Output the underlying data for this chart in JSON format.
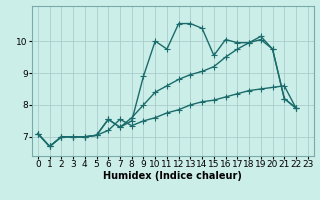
{
  "xlabel": "Humidex (Indice chaleur)",
  "bg_color": "#cceee8",
  "line_color": "#1a6b6b",
  "grid_color": "#aacccc",
  "xlim": [
    -0.5,
    23.5
  ],
  "ylim": [
    6.4,
    11.1
  ],
  "yticks": [
    7,
    8,
    9,
    10
  ],
  "xticks": [
    0,
    1,
    2,
    3,
    4,
    5,
    6,
    7,
    8,
    9,
    10,
    11,
    12,
    13,
    14,
    15,
    16,
    17,
    18,
    19,
    20,
    21,
    22,
    23
  ],
  "line1_x": [
    0,
    1,
    2,
    3,
    4,
    5,
    6,
    7,
    8,
    9,
    10,
    11,
    12,
    13,
    14,
    15,
    16,
    17,
    18,
    19,
    20,
    21,
    22
  ],
  "line1_y": [
    7.1,
    6.7,
    7.0,
    7.0,
    7.0,
    7.05,
    7.55,
    7.3,
    7.5,
    8.9,
    10.0,
    9.75,
    10.55,
    10.55,
    10.4,
    9.55,
    10.05,
    9.95,
    9.95,
    10.15,
    9.75,
    8.2,
    7.9
  ],
  "line2_x": [
    0,
    1,
    2,
    3,
    4,
    5,
    6,
    7,
    8,
    9,
    10,
    11,
    12,
    13,
    14,
    15,
    16,
    17,
    18,
    19,
    20,
    21,
    22
  ],
  "line2_y": [
    7.1,
    6.7,
    7.0,
    7.0,
    7.0,
    7.05,
    7.2,
    7.55,
    7.35,
    7.5,
    7.6,
    7.75,
    7.85,
    8.0,
    8.1,
    8.15,
    8.25,
    8.35,
    8.45,
    8.5,
    8.55,
    8.6,
    7.9
  ],
  "line3_x": [
    0,
    1,
    2,
    3,
    4,
    5,
    6,
    7,
    8,
    9,
    10,
    11,
    12,
    13,
    14,
    15,
    16,
    17,
    18,
    19,
    20,
    21,
    22
  ],
  "line3_y": [
    7.1,
    6.7,
    7.0,
    7.0,
    7.0,
    7.05,
    7.55,
    7.3,
    7.6,
    8.0,
    8.4,
    8.6,
    8.8,
    8.95,
    9.05,
    9.2,
    9.5,
    9.75,
    9.95,
    10.05,
    9.75,
    8.2,
    7.9
  ],
  "marker_size": 2.5,
  "line_width": 1.0,
  "xlabel_fontsize": 7,
  "tick_fontsize": 6.5
}
